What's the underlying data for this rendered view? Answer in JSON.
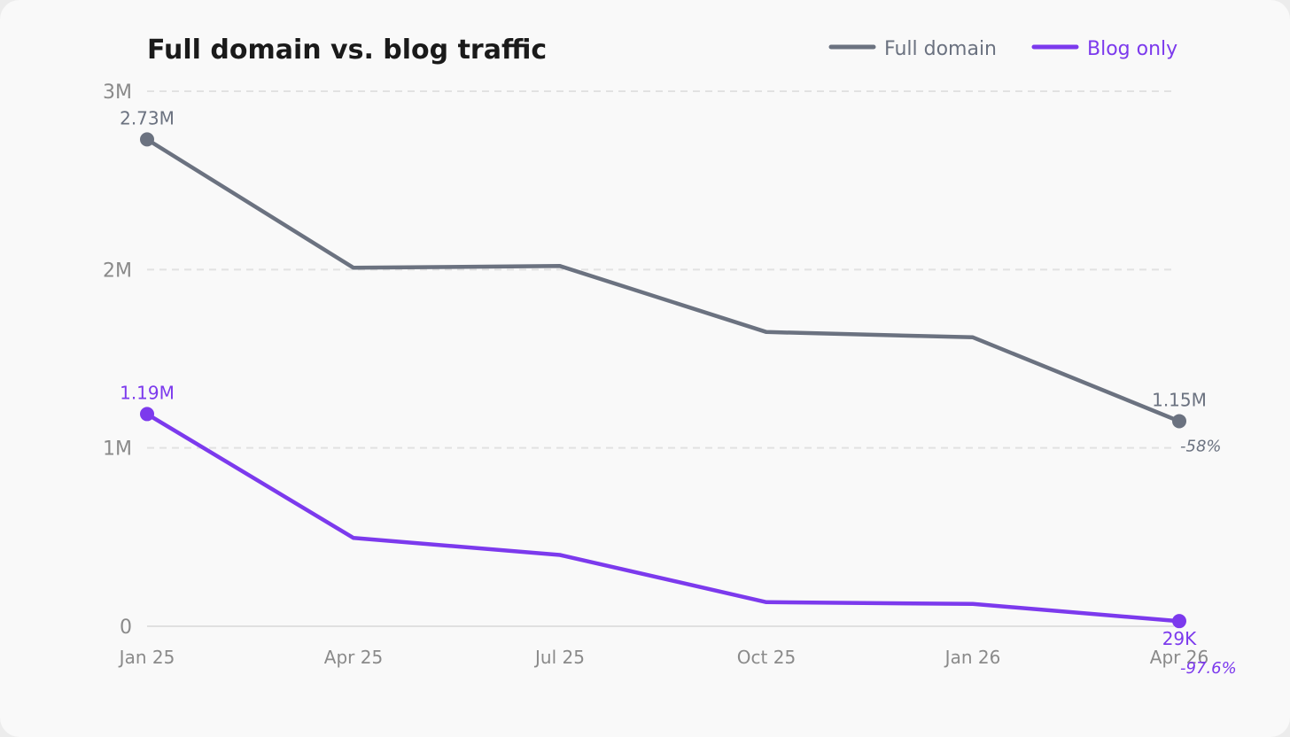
{
  "colors": {
    "full_domain": "#6b7280",
    "blog_only": "#7c3aed",
    "grid": "#e2e2e2",
    "axis_text": "#8a8a8a",
    "title": "#1a1a1a"
  },
  "chart_data": {
    "type": "line",
    "title": "Full domain vs. blog traffic",
    "xlabel": "",
    "ylabel": "",
    "categories": [
      "Jan 25",
      "Apr 25",
      "Jul 25",
      "Oct 25",
      "Jan 26",
      "Apr 26"
    ],
    "ylim": [
      0,
      3000000
    ],
    "y_ticks": [
      {
        "value": 0,
        "label": "0"
      },
      {
        "value": 1000000,
        "label": "1M"
      },
      {
        "value": 2000000,
        "label": "2M"
      },
      {
        "value": 3000000,
        "label": "3M"
      }
    ],
    "grid": true,
    "legend_position": "top-right",
    "series": [
      {
        "name": "Full domain",
        "color": "#6b7280",
        "values": [
          2730000,
          2010000,
          2020000,
          1650000,
          1620000,
          1150000
        ],
        "start_label": "2.73M",
        "end_label": "1.15M",
        "change_label": "-58%"
      },
      {
        "name": "Blog only",
        "color": "#7c3aed",
        "values": [
          1190000,
          495000,
          400000,
          135000,
          125000,
          29000
        ],
        "start_label": "1.19M",
        "end_label": "29K",
        "change_label": "-97.6%"
      }
    ]
  }
}
